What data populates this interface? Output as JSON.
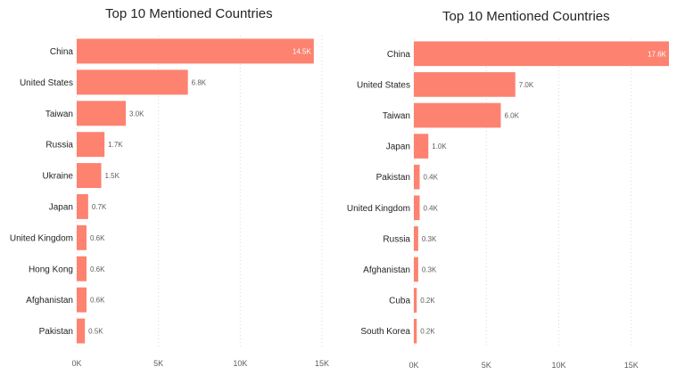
{
  "chart_data": [
    {
      "type": "bar",
      "orientation": "horizontal",
      "title": "Top 10 Mentioned Countries",
      "categories": [
        "China",
        "United States",
        "Taiwan",
        "Russia",
        "Ukraine",
        "Japan",
        "United Kingdom",
        "Hong Kong",
        "Afghanistan",
        "Pakistan"
      ],
      "values": [
        14500,
        6800,
        3000,
        1700,
        1500,
        700,
        600,
        600,
        600,
        500
      ],
      "value_labels": [
        "14.5K",
        "6.8K",
        "3.0K",
        "1.7K",
        "1.5K",
        "0.7K",
        "0.6K",
        "0.6K",
        "0.6K",
        "0.5K"
      ],
      "xlim": [
        0,
        15000
      ],
      "xticks": [
        0,
        5000,
        10000,
        15000
      ],
      "xtick_labels": [
        "0K",
        "5K",
        "10K",
        "15K"
      ],
      "grid": true,
      "bar_color": "#FD8270"
    },
    {
      "type": "bar",
      "orientation": "horizontal",
      "title": "Top 10 Mentioned Countries",
      "categories": [
        "China",
        "United States",
        "Taiwan",
        "Japan",
        "Pakistan",
        "United Kingdom",
        "Russia",
        "Afghanistan",
        "Cuba",
        "South Korea"
      ],
      "values": [
        17600,
        7000,
        6000,
        1000,
        400,
        400,
        300,
        300,
        200,
        200
      ],
      "value_labels": [
        "17.6K",
        "7.0K",
        "6.0K",
        "1.0K",
        "0.4K",
        "0.4K",
        "0.3K",
        "0.3K",
        "0.2K",
        "0.2K"
      ],
      "xlim": [
        0,
        17600
      ],
      "xticks": [
        0,
        5000,
        10000,
        15000
      ],
      "xtick_labels": [
        "0K",
        "5K",
        "10K",
        "15K"
      ],
      "grid": true,
      "bar_color": "#FD8270"
    }
  ]
}
